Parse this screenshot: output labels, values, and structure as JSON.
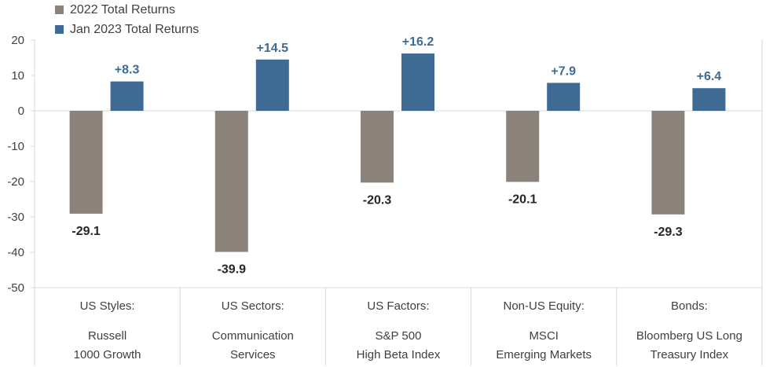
{
  "chart_data": {
    "type": "bar",
    "categories": [
      [
        "US Styles:",
        "Russell",
        "1000 Growth"
      ],
      [
        "US Sectors:",
        "Communication",
        "Services"
      ],
      [
        "US Factors:",
        "S&P 500",
        "High Beta Index"
      ],
      [
        "Non-US Equity:",
        "MSCI",
        "Emerging Markets"
      ],
      [
        "Bonds:",
        "Bloomberg US Long",
        "Treasury Index"
      ]
    ],
    "series": [
      {
        "name": "2022 Total Returns",
        "color": "#8b837a",
        "values": [
          -29.1,
          -39.9,
          -20.3,
          -20.1,
          -29.3
        ],
        "labels": [
          "-29.1",
          "-39.9",
          "-20.3",
          "-20.1",
          "-29.3"
        ]
      },
      {
        "name": "Jan 2023 Total Returns",
        "color": "#3e6a93",
        "values": [
          8.3,
          14.5,
          16.2,
          7.9,
          6.4
        ],
        "labels": [
          "+8.3",
          "+14.5",
          "+16.2",
          "+7.9",
          "+6.4"
        ]
      }
    ],
    "ylim": [
      -50,
      20
    ],
    "yticks": [
      20,
      10,
      0,
      -10,
      -20,
      -30,
      -40,
      -50
    ],
    "grid": false,
    "legend_position": "top-left",
    "title": "",
    "xlabel": "",
    "ylabel": ""
  }
}
